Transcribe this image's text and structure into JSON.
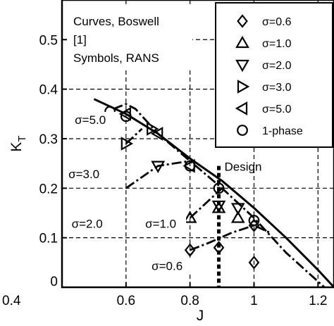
{
  "chart_data": {
    "type": "scatter",
    "xlabel": "J",
    "ylabel_main": "K",
    "ylabel_sub": "T",
    "xlim": [
      0.4,
      1.25
    ],
    "ylim": [
      0,
      0.58
    ],
    "xticks": [
      0.4,
      0.6,
      0.8,
      1.0,
      1.2
    ],
    "xtick_labels": [
      "0.4",
      "0.6",
      "0.8",
      "1",
      "1.2"
    ],
    "yticks": [
      0,
      0.1,
      0.2,
      0.3,
      0.4,
      0.5
    ],
    "ytick_labels": [
      "0",
      "0.1",
      "0.2",
      "0.3",
      "0.4",
      "0.5"
    ],
    "grid": true,
    "note_lines": [
      "Curves, Boswell",
      "[1]",
      "Symbols, RANS"
    ],
    "legend": {
      "placement": "top-right",
      "entries": [
        {
          "marker": "diamond",
          "label": "σ=0.6"
        },
        {
          "marker": "triangle-up",
          "label": "σ=1.0"
        },
        {
          "marker": "triangle-down",
          "label": "σ=2.0"
        },
        {
          "marker": "triangle-right",
          "label": "σ=3.0"
        },
        {
          "marker": "triangle-left",
          "label": "σ=5.0"
        },
        {
          "marker": "circle",
          "label": "1-phase"
        }
      ]
    },
    "curves": [
      {
        "style": "solid",
        "points": [
          [
            0.5,
            0.38
          ],
          [
            0.6,
            0.35
          ],
          [
            0.7,
            0.31
          ],
          [
            0.8,
            0.26
          ],
          [
            0.9,
            0.215
          ],
          [
            1.0,
            0.16
          ],
          [
            1.1,
            0.1
          ],
          [
            1.2,
            0.035
          ],
          [
            1.25,
            0.0
          ]
        ]
      },
      {
        "style": "dashdot",
        "label": "σ=5.0",
        "points": [
          [
            0.56,
            0.36
          ],
          [
            0.6,
            0.37
          ],
          [
            0.63,
            0.36
          ],
          [
            0.7,
            0.31
          ],
          [
            0.8,
            0.255
          ],
          [
            0.9,
            0.2
          ],
          [
            1.0,
            0.14
          ],
          [
            1.1,
            0.07
          ],
          [
            1.22,
            0.0
          ]
        ]
      },
      {
        "style": "dashdot",
        "label": "σ=3.0",
        "points": [
          [
            0.6,
            0.29
          ],
          [
            0.65,
            0.32
          ]
        ]
      },
      {
        "style": "dashdot",
        "label": "σ=2.0",
        "points": [
          [
            0.6,
            0.2
          ],
          [
            0.7,
            0.245
          ],
          [
            0.8,
            0.255
          ]
        ]
      },
      {
        "style": "dashdot",
        "label": "σ=1.0",
        "points": [
          [
            0.8,
            0.14
          ],
          [
            0.85,
            0.17
          ],
          [
            0.9,
            0.2
          ]
        ]
      },
      {
        "style": "dashdot",
        "label": "σ=0.6",
        "points": [
          [
            0.8,
            0.075
          ],
          [
            0.86,
            0.09
          ],
          [
            0.93,
            0.11
          ],
          [
            1.0,
            0.125
          ],
          [
            1.05,
            0.11
          ]
        ]
      }
    ],
    "series": [
      {
        "name": "σ=0.6",
        "marker": "diamond",
        "points": [
          [
            0.8,
            0.075
          ],
          [
            0.89,
            0.08
          ],
          [
            1.0,
            0.125
          ],
          [
            1.0,
            0.05
          ]
        ]
      },
      {
        "name": "σ=1.0",
        "marker": "triangle-up",
        "points": [
          [
            0.8,
            0.14
          ],
          [
            0.89,
            0.16
          ],
          [
            0.95,
            0.14
          ]
        ]
      },
      {
        "name": "σ=2.0",
        "marker": "triangle-down",
        "points": [
          [
            0.7,
            0.245
          ],
          [
            0.89,
            0.165
          ],
          [
            0.95,
            0.16
          ]
        ]
      },
      {
        "name": "σ=3.0",
        "marker": "triangle-right",
        "points": [
          [
            0.6,
            0.29
          ],
          [
            0.68,
            0.32
          ]
        ]
      },
      {
        "name": "σ=5.0",
        "marker": "triangle-left",
        "points": [
          [
            0.6,
            0.35
          ],
          [
            0.7,
            0.31
          ],
          [
            0.8,
            0.245
          ]
        ]
      },
      {
        "name": "1-phase",
        "marker": "circle",
        "points": [
          [
            0.55,
            0.355
          ],
          [
            0.6,
            0.345
          ],
          [
            0.8,
            0.245
          ],
          [
            0.89,
            0.2
          ],
          [
            1.0,
            0.135
          ]
        ]
      }
    ],
    "design_line": {
      "x": 0.89,
      "label": "Design"
    },
    "curve_labels": [
      {
        "text": "σ=5.0",
        "x": 0.44,
        "y": 0.33
      },
      {
        "text": "σ=3.0",
        "x": 0.42,
        "y": 0.22
      },
      {
        "text": "σ=2.0",
        "x": 0.43,
        "y": 0.12
      },
      {
        "text": "σ=1.0",
        "x": 0.66,
        "y": 0.12
      },
      {
        "text": "σ=0.6",
        "x": 0.68,
        "y": 0.035
      }
    ]
  }
}
